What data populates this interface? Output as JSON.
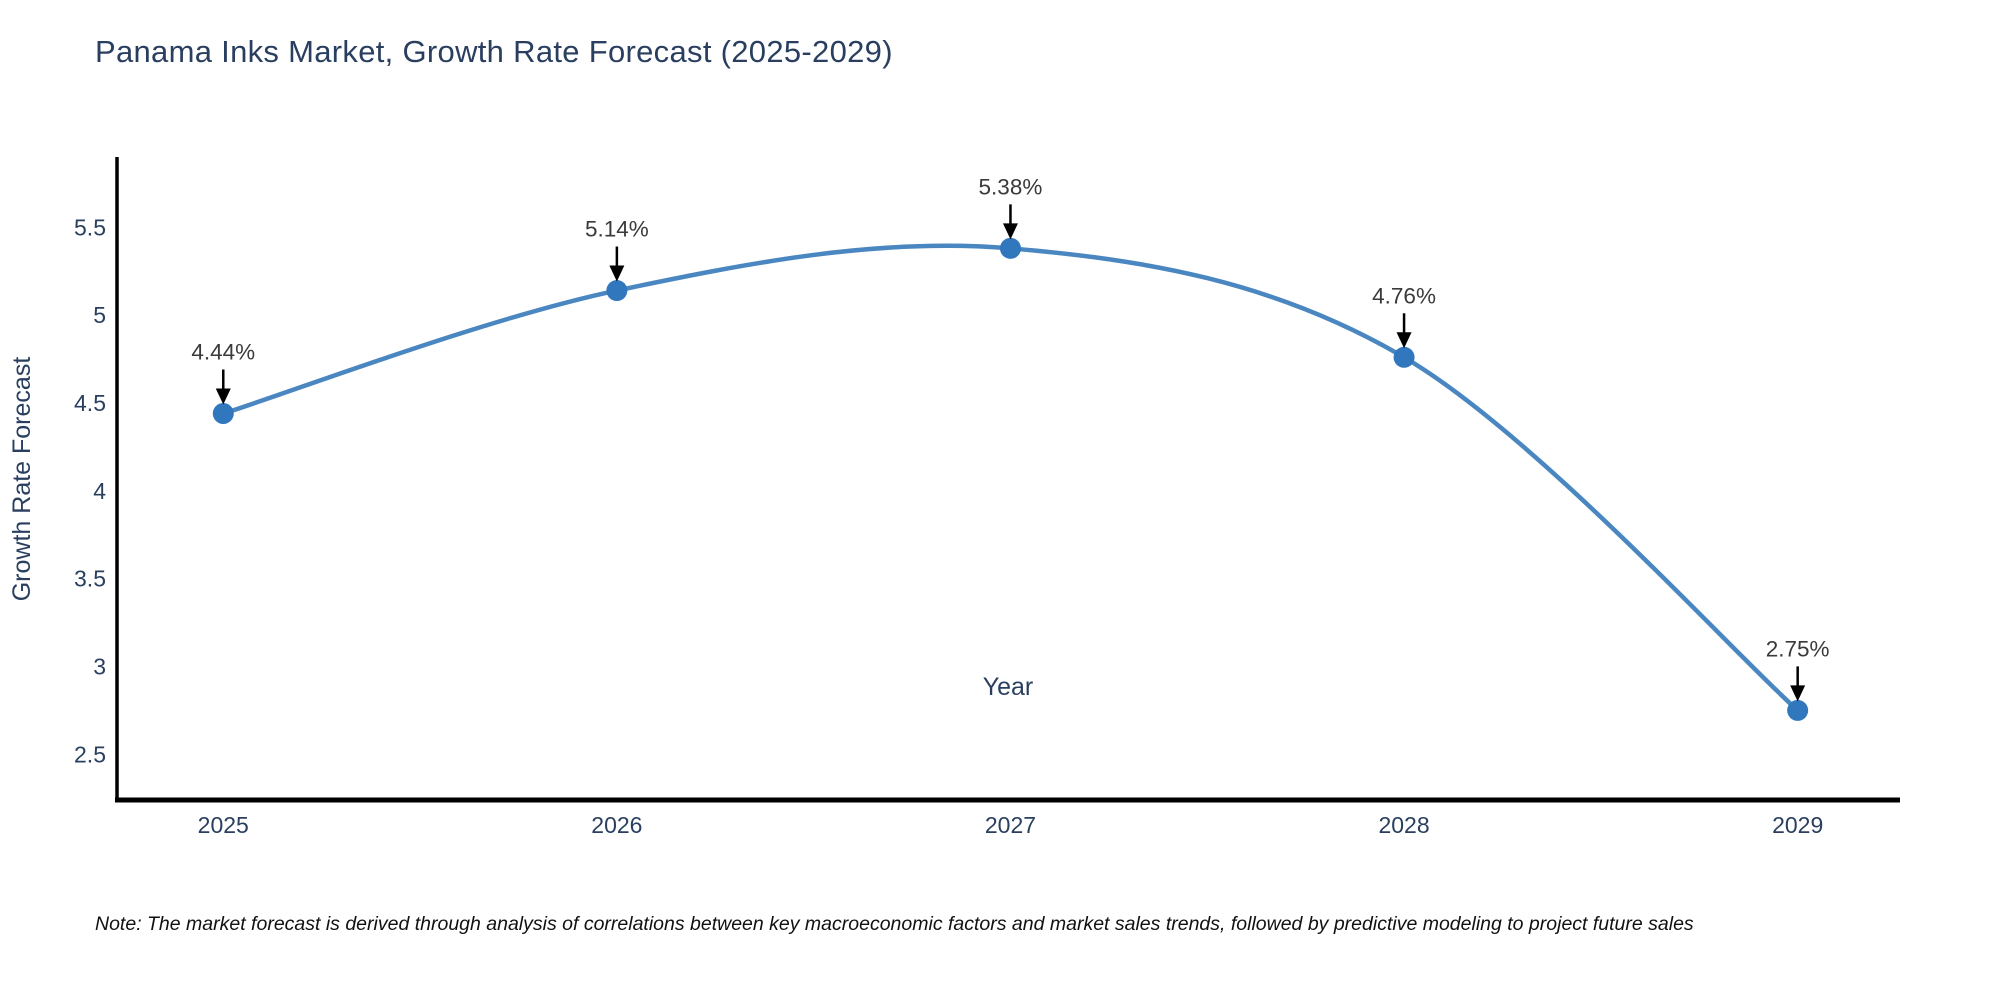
{
  "page": {
    "title": "Panama Inks Market, Growth Rate Forecast (2025-2029)",
    "note": "Note: The market forecast is derived through analysis of correlations between key macroeconomic factors and market sales trends, followed by predictive modeling to project future sales"
  },
  "chart_data": {
    "type": "line",
    "title": "Panama Inks Market, Growth Rate Forecast (2025-2029)",
    "x": [
      2025,
      2026,
      2027,
      2028,
      2029
    ],
    "series": [
      {
        "name": "Growth Rate Forecast",
        "values": [
          4.44,
          5.14,
          5.38,
          4.76,
          2.75
        ],
        "point_labels": [
          "4.44%",
          "5.14%",
          "5.38%",
          "4.76%",
          "2.75%"
        ]
      }
    ],
    "xlabel": "Year",
    "ylabel": "Growth Rate Forecast",
    "xticks": [
      "2025",
      "2026",
      "2027",
      "2028",
      "2029"
    ],
    "yticks": [
      2.5,
      3,
      3.5,
      4,
      4.5,
      5,
      5.5
    ],
    "xlim": [
      2024.73,
      2029.26
    ],
    "ylim": [
      2.24,
      5.9
    ],
    "grid": false,
    "legend": "none",
    "smooth": true,
    "colors": {
      "line": "#4a87c1",
      "marker": "#3077bd",
      "axis": "#000000",
      "tick_text": "#2a3f5f",
      "annotation_text": "#3a3a3a",
      "arrow": "#000000"
    }
  }
}
